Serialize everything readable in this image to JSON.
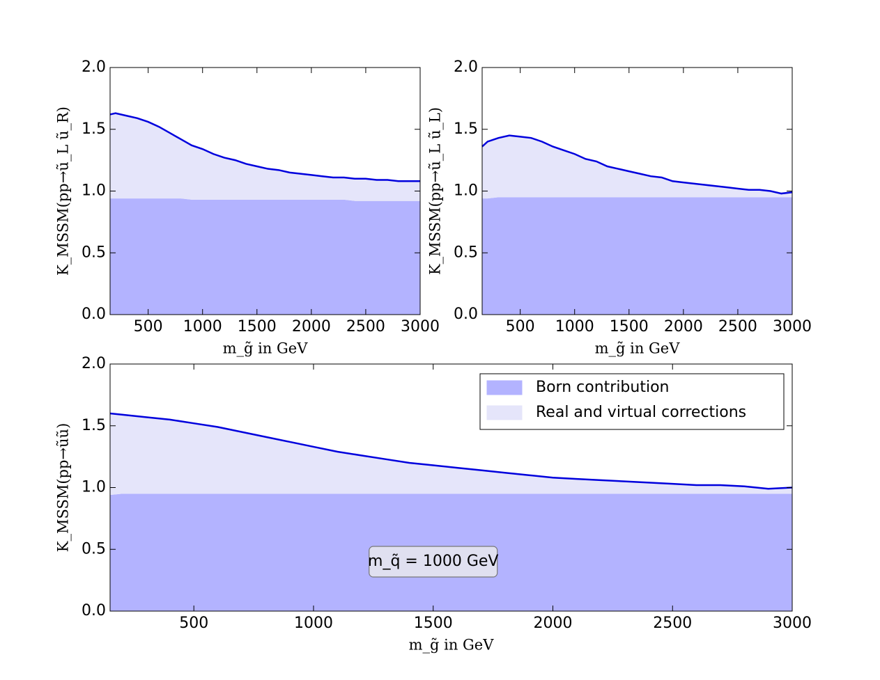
{
  "chart_data": [
    {
      "type": "stacked_area",
      "x": [
        150,
        200,
        300,
        400,
        500,
        600,
        700,
        800,
        900,
        1000,
        1100,
        1200,
        1300,
        1400,
        1500,
        1600,
        1700,
        1800,
        1900,
        2000,
        2100,
        2200,
        2300,
        2400,
        2500,
        2600,
        2700,
        2800,
        2900,
        3000
      ],
      "series": [
        {
          "color": "#b3b3ff",
          "values": [
            0.94,
            0.94,
            0.94,
            0.94,
            0.94,
            0.94,
            0.94,
            0.94,
            0.93,
            0.93,
            0.93,
            0.93,
            0.93,
            0.93,
            0.93,
            0.93,
            0.93,
            0.93,
            0.93,
            0.93,
            0.93,
            0.93,
            0.93,
            0.92,
            0.92,
            0.92,
            0.92,
            0.92,
            0.92,
            0.92
          ]
        },
        {
          "color": "#e5e5fa",
          "values": [
            0.68,
            0.69,
            0.67,
            0.65,
            0.62,
            0.58,
            0.53,
            0.48,
            0.44,
            0.41,
            0.37,
            0.34,
            0.32,
            0.29,
            0.27,
            0.25,
            0.24,
            0.22,
            0.21,
            0.2,
            0.19,
            0.18,
            0.18,
            0.18,
            0.18,
            0.17,
            0.17,
            0.16,
            0.16,
            0.16
          ]
        }
      ],
      "edge_color": "#0000dd",
      "xlabel": "m_g̃ in GeV",
      "ylabel": "K_MSSM(pp→ũ_L ũ_R)",
      "xlim": [
        150,
        3000
      ],
      "ylim": [
        0,
        2
      ],
      "xticks": [
        500,
        1000,
        1500,
        2000,
        2500,
        3000
      ],
      "yticks": [
        {
          "value": 0,
          "label": "0.0"
        },
        0.5,
        {
          "value": 1,
          "label": "1.0"
        },
        1.5,
        {
          "value": 2,
          "label": "2.0"
        }
      ]
    },
    {
      "type": "stacked_area",
      "x": [
        150,
        200,
        300,
        400,
        500,
        600,
        700,
        800,
        900,
        1000,
        1100,
        1200,
        1300,
        1400,
        1500,
        1600,
        1700,
        1800,
        1900,
        2000,
        2100,
        2200,
        2300,
        2400,
        2500,
        2600,
        2700,
        2800,
        2900,
        3000
      ],
      "series": [
        {
          "color": "#b3b3ff",
          "values": [
            0.94,
            0.94,
            0.95,
            0.95,
            0.95,
            0.95,
            0.95,
            0.95,
            0.95,
            0.95,
            0.95,
            0.95,
            0.95,
            0.95,
            0.95,
            0.95,
            0.95,
            0.95,
            0.95,
            0.95,
            0.95,
            0.95,
            0.95,
            0.95,
            0.95,
            0.95,
            0.95,
            0.95,
            0.95,
            0.95
          ]
        },
        {
          "color": "#e5e5fa",
          "values": [
            0.42,
            0.46,
            0.48,
            0.5,
            0.49,
            0.48,
            0.45,
            0.41,
            0.38,
            0.35,
            0.31,
            0.29,
            0.25,
            0.23,
            0.21,
            0.19,
            0.17,
            0.16,
            0.13,
            0.12,
            0.11,
            0.1,
            0.09,
            0.08,
            0.07,
            0.06,
            0.06,
            0.05,
            0.03,
            0.04
          ]
        }
      ],
      "edge_color": "#0000dd",
      "xlabel": "m_g̃ in GeV",
      "ylabel": "K_MSSM(pp→ũ_L ũ_L)",
      "xlim": [
        150,
        3000
      ],
      "ylim": [
        0,
        2
      ],
      "xticks": [
        500,
        1000,
        1500,
        2000,
        2500,
        3000
      ],
      "yticks": [
        {
          "value": 0,
          "label": "0.0"
        },
        0.5,
        {
          "value": 1,
          "label": "1.0"
        },
        1.5,
        {
          "value": 2,
          "label": "2.0"
        }
      ]
    },
    {
      "type": "stacked_area",
      "x": [
        150,
        200,
        300,
        400,
        500,
        600,
        700,
        800,
        900,
        1000,
        1100,
        1200,
        1300,
        1400,
        1500,
        1600,
        1700,
        1800,
        1900,
        2000,
        2100,
        2200,
        2300,
        2400,
        2500,
        2600,
        2700,
        2800,
        2900,
        3000
      ],
      "series": [
        {
          "name": "Born contribution",
          "color": "#b3b3ff",
          "values": [
            0.94,
            0.95,
            0.95,
            0.95,
            0.95,
            0.95,
            0.95,
            0.95,
            0.95,
            0.95,
            0.95,
            0.95,
            0.95,
            0.95,
            0.95,
            0.95,
            0.95,
            0.95,
            0.95,
            0.95,
            0.95,
            0.95,
            0.95,
            0.95,
            0.95,
            0.95,
            0.95,
            0.95,
            0.95,
            0.95
          ]
        },
        {
          "name": "Real and virtual corrections",
          "color": "#e5e5fa",
          "values": [
            0.66,
            0.64,
            0.62,
            0.6,
            0.57,
            0.54,
            0.5,
            0.46,
            0.42,
            0.38,
            0.34,
            0.31,
            0.28,
            0.25,
            0.23,
            0.21,
            0.19,
            0.17,
            0.15,
            0.13,
            0.12,
            0.11,
            0.1,
            0.09,
            0.08,
            0.07,
            0.07,
            0.06,
            0.04,
            0.05
          ]
        }
      ],
      "edge_color": "#0000dd",
      "xlabel": "m_g̃ in GeV",
      "ylabel": "K_MSSM(pp→ũũ)",
      "annotation": "m_q̃ = 1000 GeV",
      "legend": "upper right",
      "xlim": [
        150,
        3000
      ],
      "ylim": [
        0,
        2
      ],
      "xticks": [
        500,
        1000,
        1500,
        2000,
        2500,
        3000
      ],
      "yticks": [
        {
          "value": 0,
          "label": "0.0"
        },
        0.5,
        {
          "value": 1,
          "label": "1.0"
        },
        1.5,
        {
          "value": 2,
          "label": "2.0"
        }
      ]
    }
  ]
}
